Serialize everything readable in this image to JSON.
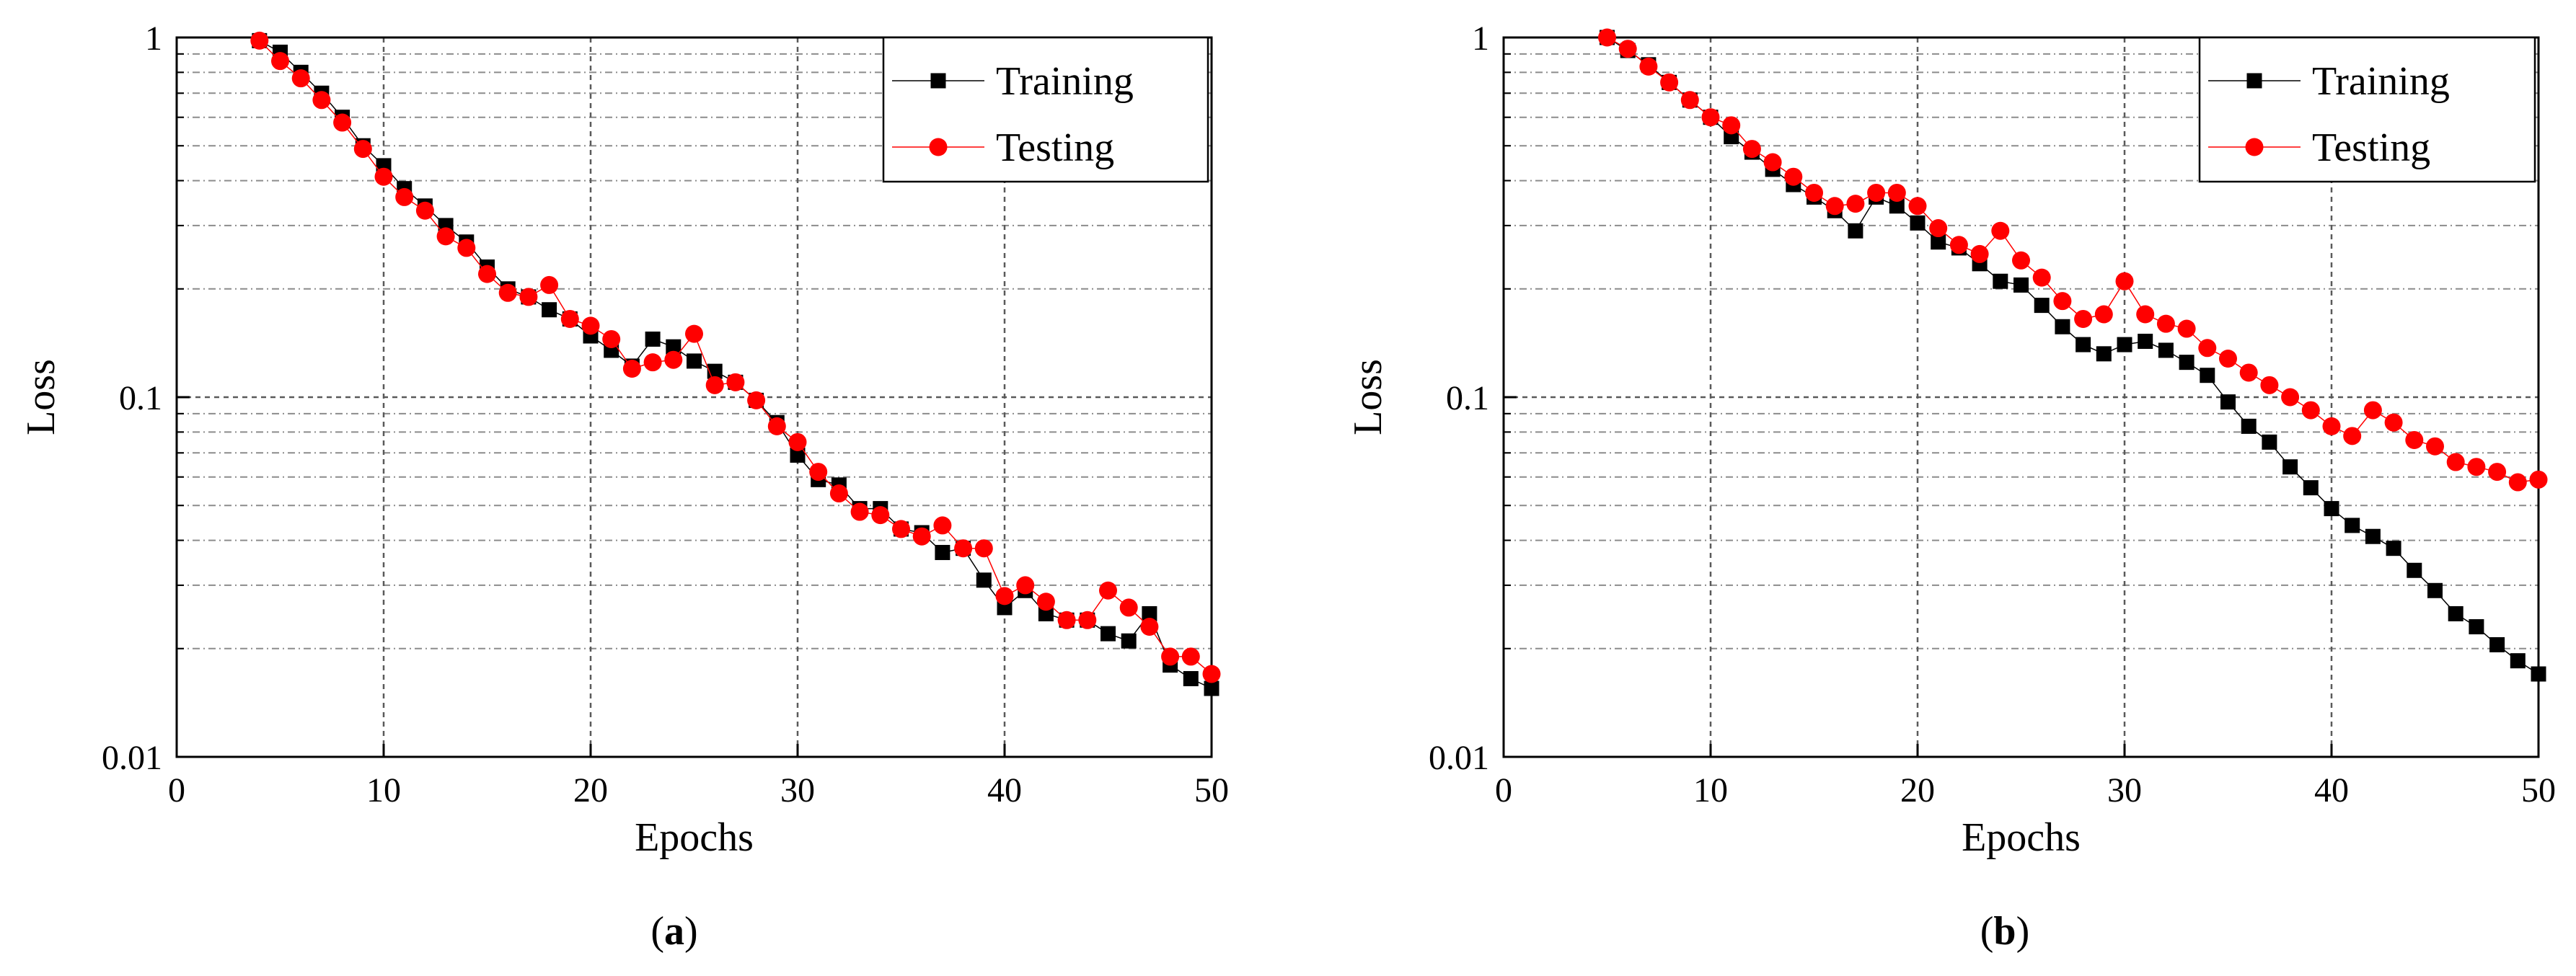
{
  "chart_data": [
    {
      "panel": "a",
      "caption": "(a)",
      "caption_letter": "a",
      "type": "line",
      "title": "",
      "xlabel": "Epochs",
      "ylabel": "Loss",
      "xscale": "linear",
      "yscale": "log",
      "xlim": [
        0,
        50
      ],
      "ylim": [
        0.01,
        1
      ],
      "xticks": [
        0,
        10,
        20,
        30,
        40,
        50
      ],
      "xtick_labels": [
        "0",
        "10",
        "20",
        "30",
        "40",
        "50"
      ],
      "yticks": [
        0.01,
        0.1,
        1
      ],
      "ytick_labels": [
        "0.01",
        "0.1",
        "1"
      ],
      "grid": true,
      "legend": {
        "position": "top-right",
        "entries": [
          "Training",
          "Testing"
        ]
      },
      "series": [
        {
          "name": "Training",
          "color": "#000000",
          "marker": "square",
          "x": [
            4,
            5,
            6,
            7,
            8,
            9,
            10,
            11,
            12,
            13,
            14,
            15,
            16,
            17,
            18,
            19,
            20,
            21,
            22,
            23,
            24,
            25,
            26,
            27,
            28,
            29,
            30,
            31,
            32,
            33,
            34,
            35,
            36,
            37,
            38,
            39,
            40,
            41,
            42,
            43,
            44,
            45,
            46,
            47,
            48,
            49,
            50
          ],
          "values": [
            0.98,
            0.91,
            0.8,
            0.7,
            0.6,
            0.5,
            0.44,
            0.38,
            0.34,
            0.3,
            0.27,
            0.23,
            0.2,
            0.19,
            0.175,
            0.165,
            0.148,
            0.135,
            0.122,
            0.145,
            0.138,
            0.126,
            0.118,
            0.11,
            0.098,
            0.085,
            0.069,
            0.059,
            0.057,
            0.049,
            0.049,
            0.043,
            0.042,
            0.037,
            0.038,
            0.031,
            0.026,
            0.029,
            0.025,
            0.024,
            0.024,
            0.022,
            0.021,
            0.025,
            0.018,
            0.0165,
            0.0155
          ]
        },
        {
          "name": "Testing",
          "color": "#ff0000",
          "marker": "circle",
          "x": [
            4,
            5,
            6,
            7,
            8,
            9,
            10,
            11,
            12,
            13,
            14,
            15,
            16,
            17,
            18,
            19,
            20,
            21,
            22,
            23,
            24,
            25,
            26,
            27,
            28,
            29,
            30,
            31,
            32,
            33,
            34,
            35,
            36,
            37,
            38,
            39,
            40,
            41,
            42,
            43,
            44,
            45,
            46,
            47,
            48,
            49,
            50
          ],
          "values": [
            0.98,
            0.86,
            0.77,
            0.67,
            0.58,
            0.49,
            0.41,
            0.36,
            0.33,
            0.28,
            0.26,
            0.22,
            0.195,
            0.19,
            0.205,
            0.165,
            0.158,
            0.145,
            0.12,
            0.125,
            0.127,
            0.15,
            0.108,
            0.11,
            0.098,
            0.083,
            0.075,
            0.062,
            0.054,
            0.048,
            0.047,
            0.043,
            0.041,
            0.044,
            0.038,
            0.038,
            0.028,
            0.03,
            0.027,
            0.024,
            0.024,
            0.029,
            0.026,
            0.023,
            0.019,
            0.019,
            0.017
          ]
        }
      ]
    },
    {
      "panel": "b",
      "caption": "(b)",
      "caption_letter": "b",
      "type": "line",
      "title": "",
      "xlabel": "Epochs",
      "ylabel": "Loss",
      "xscale": "linear",
      "yscale": "log",
      "xlim": [
        0,
        50
      ],
      "ylim": [
        0.01,
        1
      ],
      "xticks": [
        0,
        10,
        20,
        30,
        40,
        50
      ],
      "xtick_labels": [
        "0",
        "10",
        "20",
        "30",
        "40",
        "50"
      ],
      "yticks": [
        0.01,
        0.1,
        1
      ],
      "ytick_labels": [
        "0.01",
        "0.1",
        "1"
      ],
      "grid": true,
      "legend": {
        "position": "top-right",
        "entries": [
          "Training",
          "Testing"
        ]
      },
      "series": [
        {
          "name": "Training",
          "color": "#000000",
          "marker": "square",
          "x": [
            5,
            6,
            7,
            8,
            9,
            10,
            11,
            12,
            13,
            14,
            15,
            16,
            17,
            18,
            19,
            20,
            21,
            22,
            23,
            24,
            25,
            26,
            27,
            28,
            29,
            30,
            31,
            32,
            33,
            34,
            35,
            36,
            37,
            38,
            39,
            40,
            41,
            42,
            43,
            44,
            45,
            46,
            47,
            48,
            49,
            50
          ],
          "values": [
            1.0,
            0.92,
            0.84,
            0.75,
            0.67,
            0.6,
            0.53,
            0.48,
            0.43,
            0.39,
            0.36,
            0.33,
            0.29,
            0.36,
            0.34,
            0.305,
            0.27,
            0.26,
            0.235,
            0.21,
            0.205,
            0.18,
            0.157,
            0.14,
            0.132,
            0.14,
            0.143,
            0.135,
            0.125,
            0.115,
            0.097,
            0.083,
            0.075,
            0.064,
            0.056,
            0.049,
            0.044,
            0.041,
            0.038,
            0.033,
            0.029,
            0.025,
            0.023,
            0.0205,
            0.0185,
            0.017
          ]
        },
        {
          "name": "Testing",
          "color": "#ff0000",
          "marker": "circle",
          "x": [
            5,
            6,
            7,
            8,
            9,
            10,
            11,
            12,
            13,
            14,
            15,
            16,
            17,
            18,
            19,
            20,
            21,
            22,
            23,
            24,
            25,
            26,
            27,
            28,
            29,
            30,
            31,
            32,
            33,
            34,
            35,
            36,
            37,
            38,
            39,
            40,
            41,
            42,
            43,
            44,
            45,
            46,
            47,
            48,
            49,
            50
          ],
          "values": [
            1.0,
            0.93,
            0.83,
            0.75,
            0.67,
            0.6,
            0.57,
            0.49,
            0.45,
            0.41,
            0.37,
            0.34,
            0.345,
            0.37,
            0.37,
            0.34,
            0.295,
            0.265,
            0.25,
            0.29,
            0.24,
            0.215,
            0.185,
            0.165,
            0.17,
            0.21,
            0.17,
            0.16,
            0.155,
            0.137,
            0.128,
            0.117,
            0.108,
            0.1,
            0.092,
            0.083,
            0.078,
            0.092,
            0.085,
            0.076,
            0.073,
            0.066,
            0.064,
            0.062,
            0.058,
            0.059
          ]
        }
      ]
    }
  ]
}
